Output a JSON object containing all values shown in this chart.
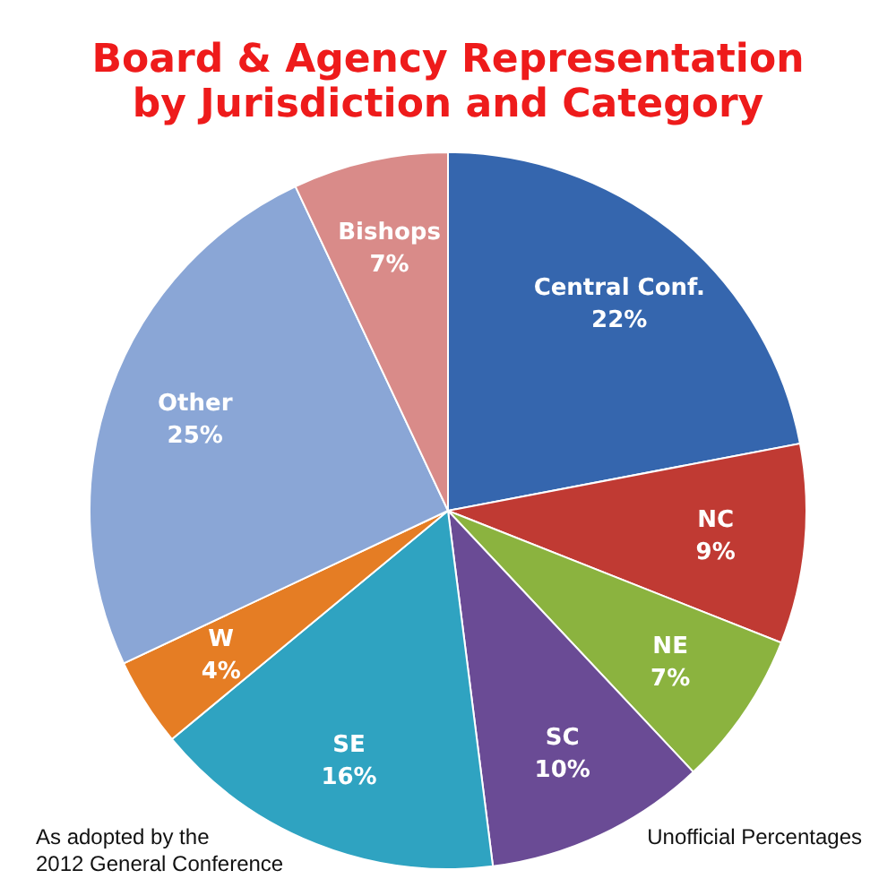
{
  "chart_data": {
    "type": "pie",
    "title": "Board & Agency Representation\nby Jurisdiction and Category",
    "categories": [
      "Central Conf.",
      "NC",
      "NE",
      "SC",
      "SE",
      "W",
      "Other",
      "Bishops"
    ],
    "values": [
      22,
      9,
      7,
      10,
      16,
      4,
      25,
      7
    ],
    "value_labels": [
      "22%",
      "9%",
      "7%",
      "10%",
      "16%",
      "4%",
      "25%",
      "7%"
    ],
    "colors": [
      "#3566ae",
      "#c03a33",
      "#8bb33f",
      "#6a4b95",
      "#2fa3c1",
      "#e57d24",
      "#8aa6d6",
      "#d98b89"
    ],
    "annotations": [
      "As adopted by the\n2012 General Conference",
      "Unofficial Percentages"
    ]
  }
}
